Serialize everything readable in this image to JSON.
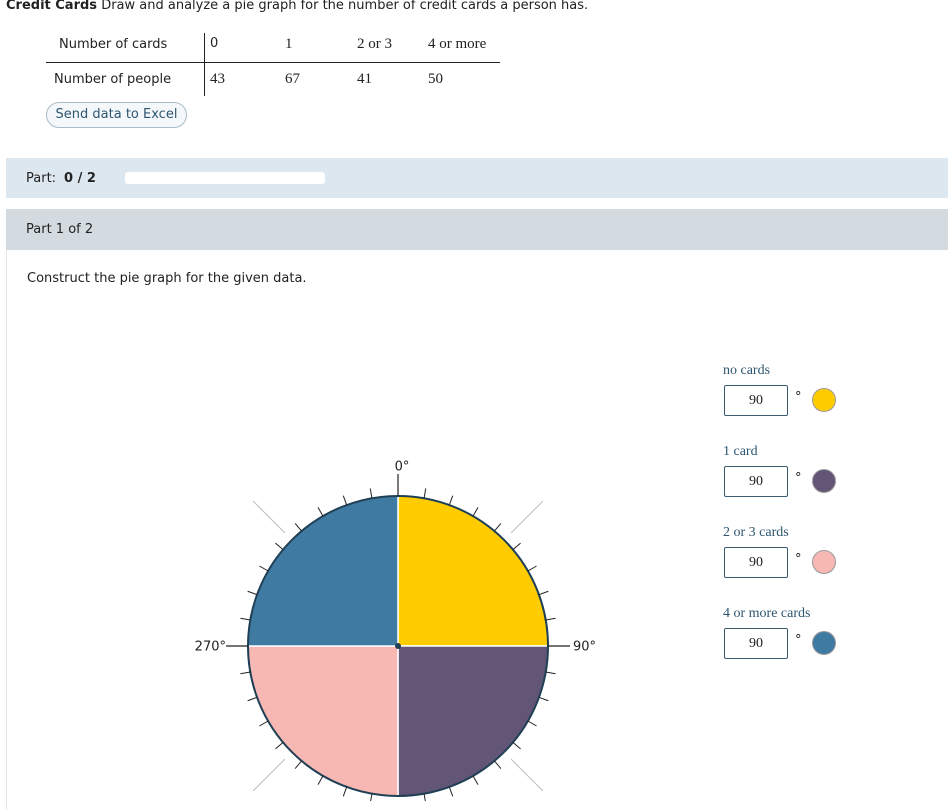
{
  "header": {
    "title": "Credit Cards",
    "prompt": "Draw and analyze a pie graph for the number of credit cards a person has."
  },
  "table": {
    "row_headers": [
      "Number of cards",
      "Number of people"
    ],
    "columns": [
      "0",
      "1",
      "2 or 3",
      "4 or more"
    ],
    "values": [
      43,
      67,
      41,
      50
    ]
  },
  "excel_button": "Send data to Excel",
  "progress": {
    "label": "Part:",
    "value": "0 / 2"
  },
  "part_header": "Part 1 of 2",
  "instruction": "Construct the pie graph for the given data.",
  "pie": {
    "angle_labels": [
      "0°",
      "90°",
      "270°"
    ],
    "degree_symbol": "°",
    "slices": [
      {
        "label": "no cards",
        "degrees": 90,
        "color": "#ffcc00"
      },
      {
        "label": "1 card",
        "degrees": 90,
        "color": "#625576"
      },
      {
        "label": "2 or 3 cards",
        "degrees": 90,
        "color": "#f7b8b4"
      },
      {
        "label": "4 or more cards",
        "degrees": 90,
        "color": "#3f7aa3"
      }
    ]
  }
}
